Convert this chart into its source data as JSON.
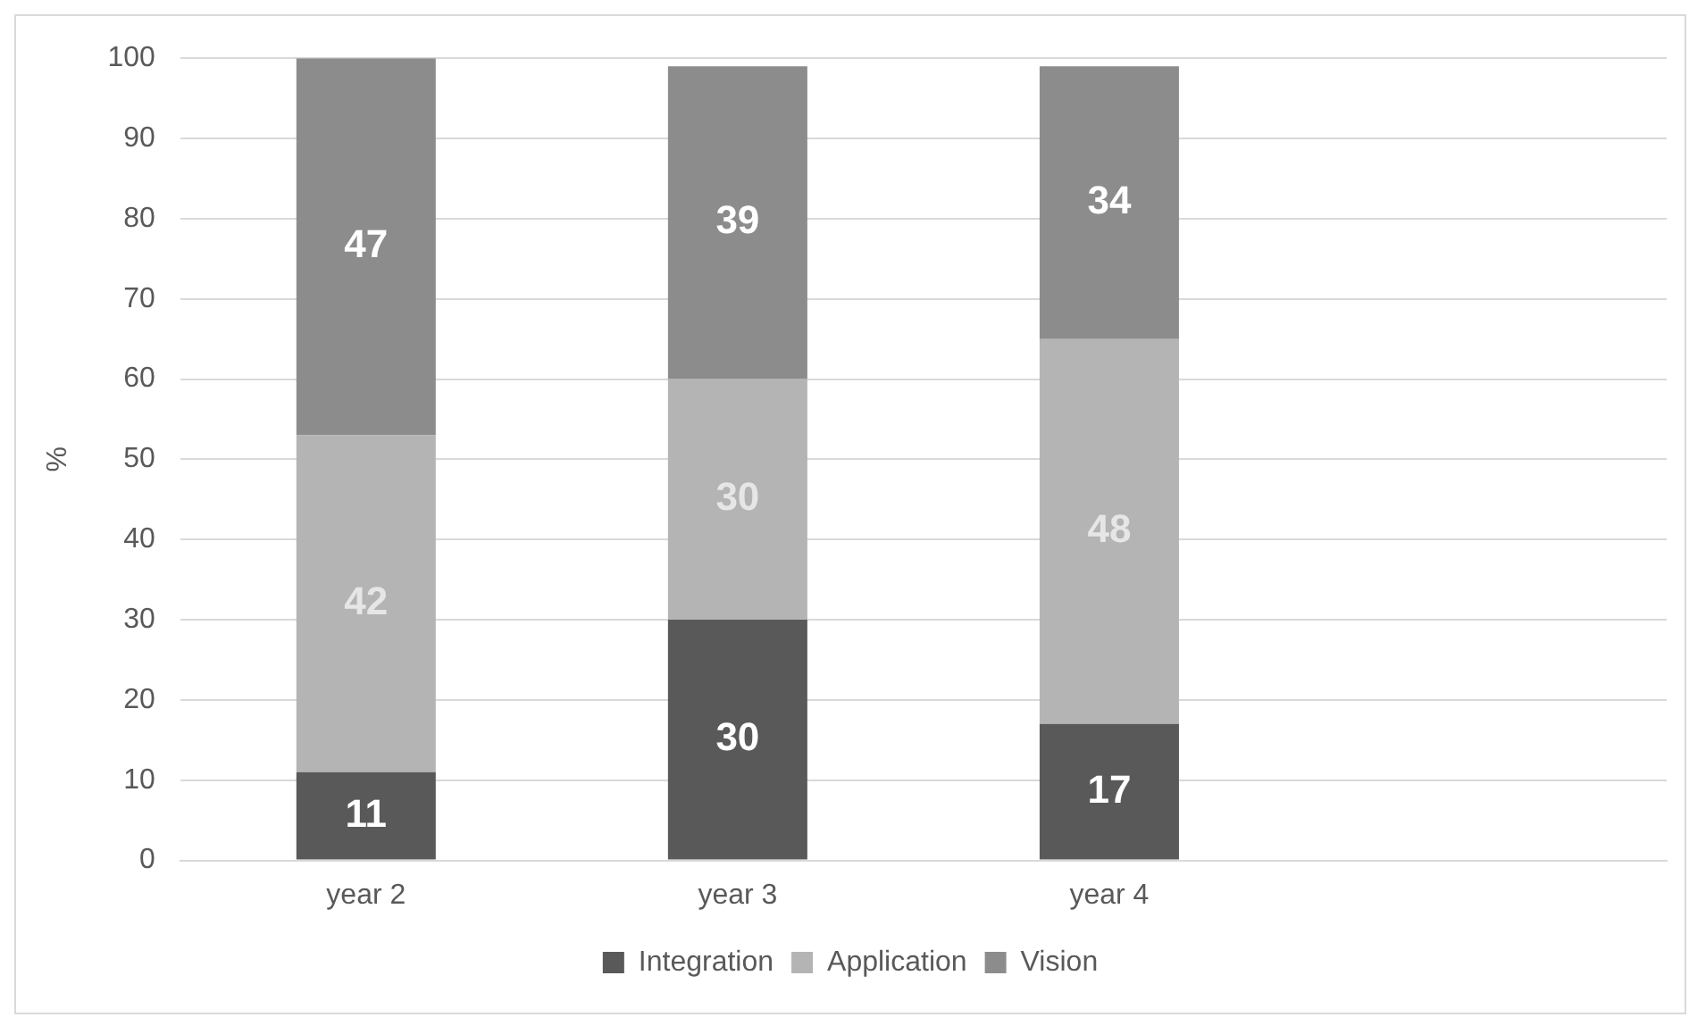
{
  "chart_data": {
    "type": "bar",
    "stacked": true,
    "ylabel": "%",
    "categories": [
      "year 2",
      "year 3",
      "year 4",
      null
    ],
    "series": [
      {
        "name": "Integration",
        "color": "#595959",
        "values": [
          11,
          30,
          17,
          null
        ]
      },
      {
        "name": "Application",
        "color": "#b4b4b4",
        "values": [
          42,
          30,
          48,
          null
        ]
      },
      {
        "name": "Vision",
        "color": "#8c8c8c",
        "values": [
          47,
          39,
          34,
          null
        ]
      }
    ],
    "ylim": [
      0,
      100
    ],
    "yticks": [
      0,
      10,
      20,
      30,
      40,
      50,
      60,
      70,
      80,
      90,
      100
    ],
    "grid": "y",
    "legend": "bottom",
    "data_labels": true
  }
}
